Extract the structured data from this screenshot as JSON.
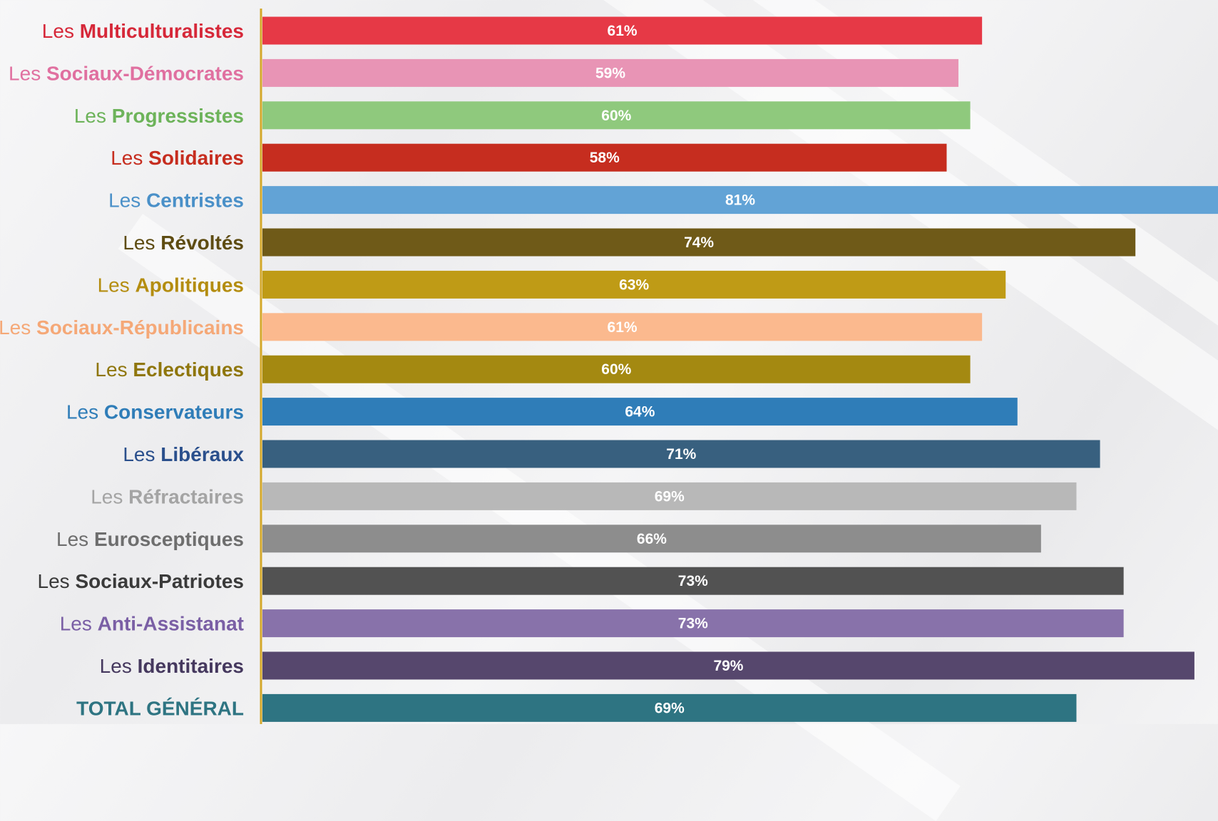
{
  "chart_data": {
    "type": "bar",
    "orientation": "horizontal",
    "title": "",
    "xlabel": "",
    "ylabel": "",
    "xlim": [
      0,
      81
    ],
    "grid": false,
    "legend": "none",
    "value_suffix": "%",
    "axis_color": "#d4a82a",
    "categories": [
      {
        "prefix": "Les",
        "name": "Multiculturalistes",
        "value": 61,
        "color": "#e63946",
        "label_color": "#d62839"
      },
      {
        "prefix": "Les",
        "name": "Sociaux-Démocrates",
        "value": 59,
        "color": "#e894b5",
        "label_color": "#e070a0"
      },
      {
        "prefix": "Les",
        "name": "Progressistes",
        "value": 60,
        "color": "#8fc97d",
        "label_color": "#6db35a"
      },
      {
        "prefix": "Les",
        "name": "Solidaires",
        "value": 58,
        "color": "#c62d1f",
        "label_color": "#c62d1f"
      },
      {
        "prefix": "Les",
        "name": "Centristes",
        "value": 81,
        "color": "#62a3d6",
        "label_color": "#4a90c8"
      },
      {
        "prefix": "Les",
        "name": "Révoltés",
        "value": 74,
        "color": "#6f5a18",
        "label_color": "#5e4c12"
      },
      {
        "prefix": "Les",
        "name": "Apolitiques",
        "value": 63,
        "color": "#bf9b16",
        "label_color": "#b48d10"
      },
      {
        "prefix": "Les",
        "name": "Sociaux-Républicains",
        "value": 61,
        "color": "#fbb98e",
        "label_color": "#f5a877"
      },
      {
        "prefix": "Les",
        "name": "Eclectiques",
        "value": 60,
        "color": "#a48911",
        "label_color": "#8f760c"
      },
      {
        "prefix": "Les",
        "name": "Conservateurs",
        "value": 64,
        "color": "#2f7db8",
        "label_color": "#2f7db8"
      },
      {
        "prefix": "Les",
        "name": "Libéraux",
        "value": 71,
        "color": "#38607f",
        "label_color": "#2a4f8c"
      },
      {
        "prefix": "Les",
        "name": "Réfractaires",
        "value": 69,
        "color": "#b8b8b8",
        "label_color": "#a4a4a4"
      },
      {
        "prefix": "Les",
        "name": "Eurosceptiques",
        "value": 66,
        "color": "#8d8d8d",
        "label_color": "#6e6e6e"
      },
      {
        "prefix": "Les",
        "name": "Sociaux-Patriotes",
        "value": 73,
        "color": "#525252",
        "label_color": "#3a3a3a"
      },
      {
        "prefix": "Les",
        "name": "Anti-Assistanat",
        "value": 73,
        "color": "#8872aa",
        "label_color": "#7a5fa5"
      },
      {
        "prefix": "Les",
        "name": "Identitaires",
        "value": 79,
        "color": "#56476d",
        "label_color": "#45385e"
      },
      {
        "prefix": "",
        "name": "TOTAL GÉNÉRAL",
        "value": 69,
        "color": "#2e7482",
        "label_color": "#2e7482"
      }
    ]
  }
}
